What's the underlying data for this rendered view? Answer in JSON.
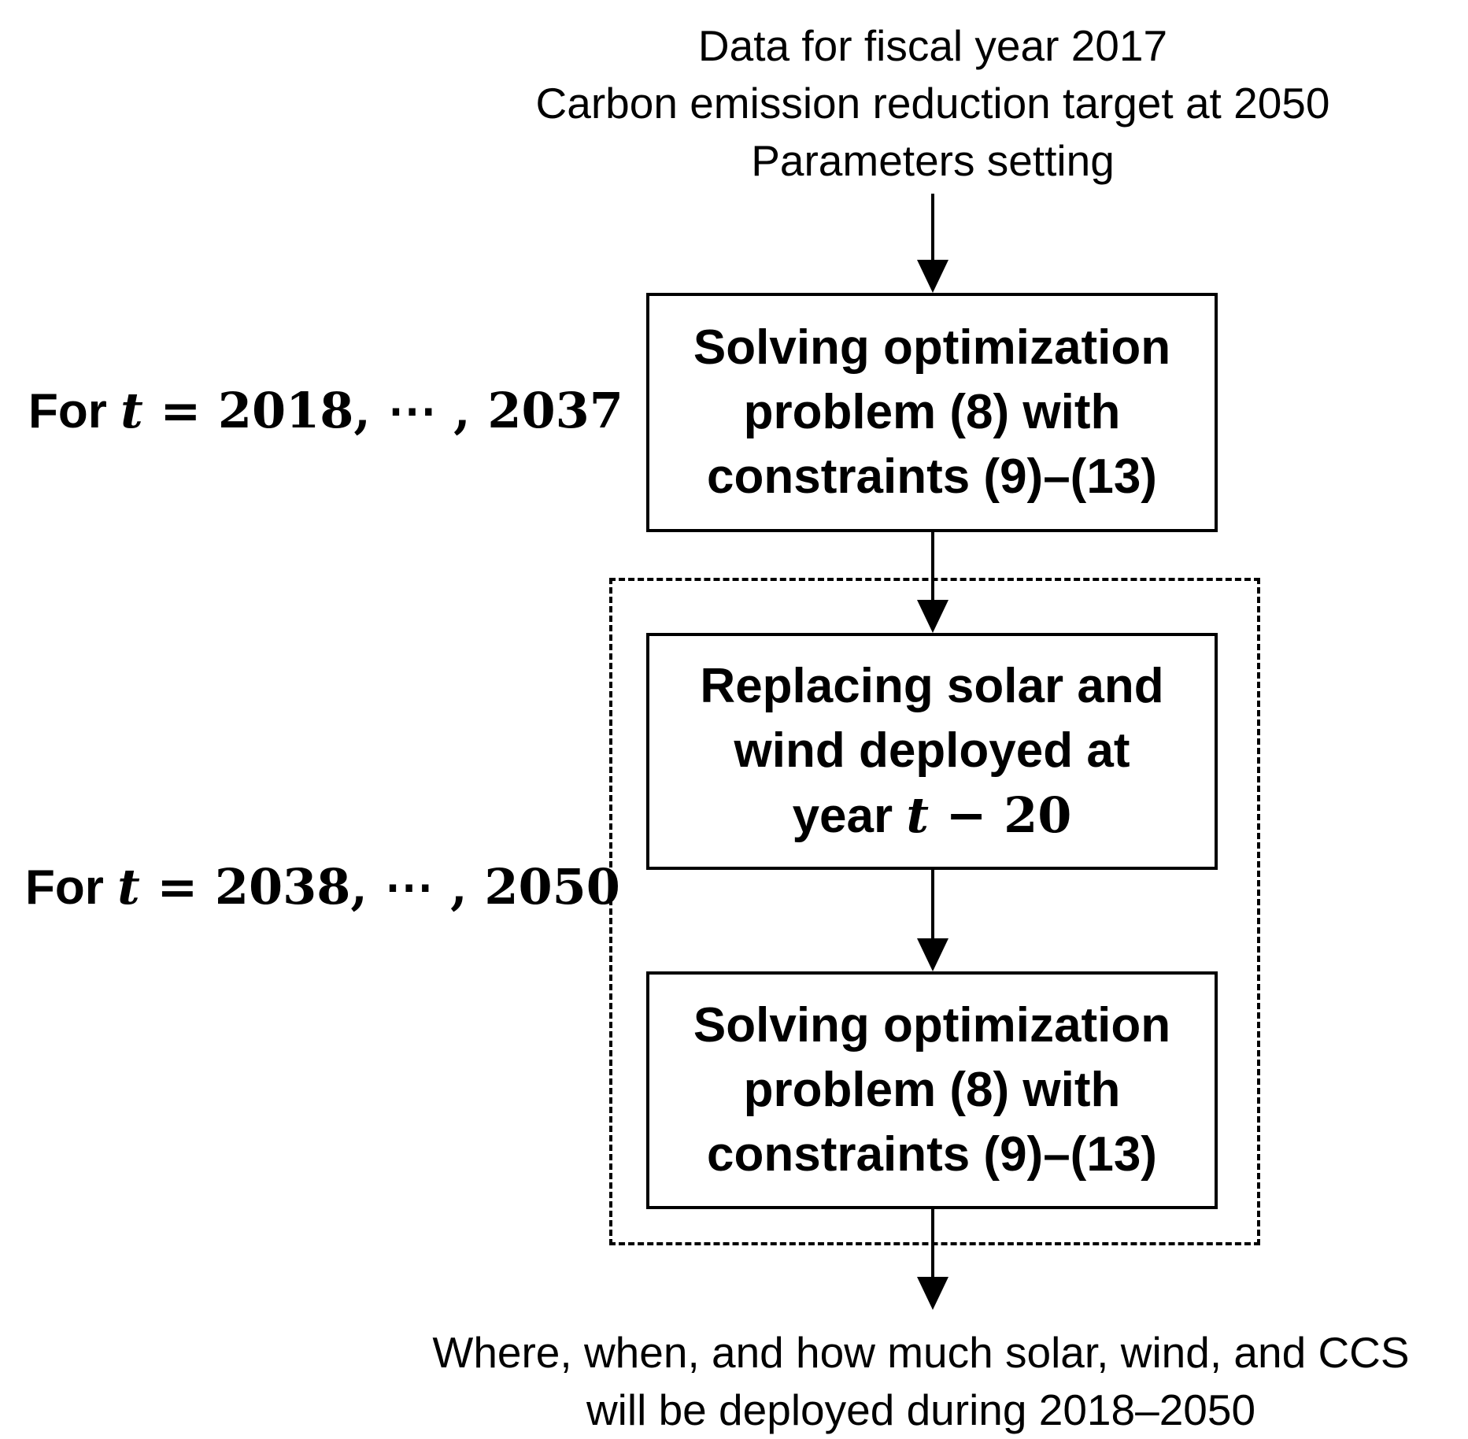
{
  "inputs": {
    "line1": "Data for fiscal year 2017",
    "line2": "Carbon emission reduction target at 2050",
    "line3": "Parameters setting"
  },
  "box1": {
    "line1": "Solving optimization",
    "line2": "problem (8) with",
    "line3": "constraints (9)–(13)"
  },
  "box2": {
    "line1": "Replacing solar and",
    "line2": "wind deployed at",
    "line3_prefix": "year",
    "line3_math_var": "t",
    "line3_math_rest": " − 20"
  },
  "box3": {
    "line1": "Solving optimization",
    "line2": "problem (8) with",
    "line3": "constraints (9)–(13)"
  },
  "loop1": {
    "prefix": "For",
    "var": "t",
    "range": " = 2018, ⋯ , 2037"
  },
  "loop2": {
    "prefix": "For",
    "var": "t",
    "range": " = 2038, ⋯ , 2050"
  },
  "output": {
    "line1": "Where, when, and how much solar, wind, and CCS",
    "line2": "will be deployed during 2018–2050"
  }
}
